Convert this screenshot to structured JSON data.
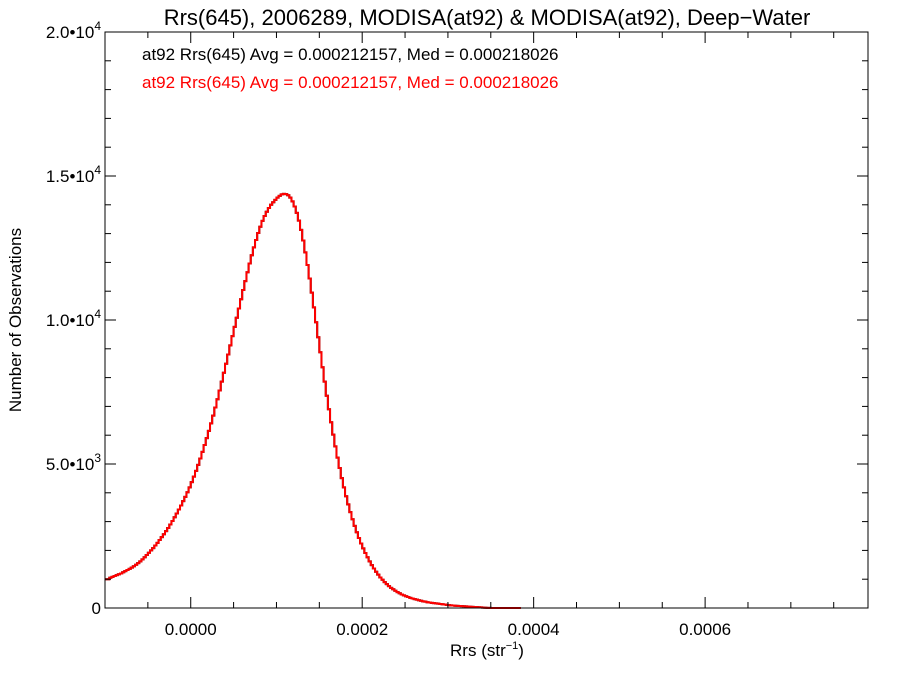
{
  "chart_data": {
    "type": "histogram",
    "title": "Rrs(645), 2006289, MODISA(at92) & MODISA(at92), Deep−Water",
    "xlabel": "Rrs (str",
    "xlabel_sup": "−1",
    "xlabel_end": ")",
    "ylabel": "Number of Observations",
    "xlim": [
      -0.0001,
      0.00079
    ],
    "ylim": [
      0,
      20000
    ],
    "x_ticks": [
      {
        "value": 0.0,
        "label": "0.0000"
      },
      {
        "value": 0.0002,
        "label": "0.0002"
      },
      {
        "value": 0.0004,
        "label": "0.0004"
      },
      {
        "value": 0.0006,
        "label": "0.0006"
      }
    ],
    "y_ticks": [
      {
        "value": 0,
        "base": "0",
        "exp": ""
      },
      {
        "value": 5000,
        "base": "5.0•10",
        "exp": "3"
      },
      {
        "value": 10000,
        "base": "1.0•10",
        "exp": "4"
      },
      {
        "value": 15000,
        "base": "1.5•10",
        "exp": "4"
      },
      {
        "value": 20000,
        "base": "2.0•10",
        "exp": "4"
      }
    ],
    "grid": false,
    "annotations": [
      {
        "text": "at92 Rrs(645) Avg = 0.000212157, Med = 0.000218026",
        "color": "#000000"
      },
      {
        "text": "at92 Rrs(645) Avg = 0.000212157, Med = 0.000218026",
        "color": "#ff0000"
      }
    ],
    "series": [
      {
        "color": "#000000",
        "x": [],
        "y": []
      },
      {
        "color": "#ff0000",
        "x": [],
        "y": []
      }
    ],
    "x_start": -0.0001,
    "bin_width": 2.5e-06,
    "counts": [
      1000,
      1000,
      1050,
      1080,
      1110,
      1140,
      1170,
      1200,
      1240,
      1280,
      1320,
      1360,
      1400,
      1450,
      1500,
      1560,
      1620,
      1690,
      1760,
      1840,
      1920,
      2000,
      2080,
      2170,
      2260,
      2360,
      2460,
      2560,
      2670,
      2780,
      2900,
      3020,
      3150,
      3280,
      3420,
      3560,
      3710,
      3860,
      4020,
      4190,
      4370,
      4560,
      4760,
      4970,
      5190,
      5420,
      5660,
      5900,
      6150,
      6410,
      6680,
      6960,
      7250,
      7550,
      7860,
      8170,
      8480,
      8800,
      9120,
      9440,
      9760,
      10080,
      10400,
      10720,
      11040,
      11350,
      11660,
      11960,
      12250,
      12520,
      12780,
      13020,
      13240,
      13440,
      13610,
      13760,
      13890,
      14000,
      14090,
      14170,
      14250,
      14310,
      14360,
      14380,
      14370,
      14330,
      14250,
      14120,
      13940,
      13720,
      13450,
      13130,
      12760,
      12350,
      11910,
      11440,
      10950,
      10440,
      9920,
      9400,
      8880,
      8360,
      7860,
      7370,
      6900,
      6450,
      6020,
      5610,
      5220,
      4860,
      4510,
      4190,
      3880,
      3600,
      3330,
      3080,
      2850,
      2630,
      2430,
      2240,
      2070,
      1910,
      1760,
      1620,
      1490,
      1370,
      1260,
      1160,
      1060,
      980,
      900,
      830,
      760,
      700,
      650,
      600,
      550,
      510,
      470,
      440,
      410,
      380,
      350,
      330,
      310,
      290,
      270,
      250,
      230,
      220,
      200,
      190,
      180,
      170,
      160,
      150,
      140,
      130,
      120,
      110,
      100,
      90,
      85,
      80,
      75,
      70,
      65,
      60,
      55,
      50,
      45,
      40,
      35,
      30,
      25,
      20,
      15,
      10,
      6,
      4,
      2,
      1,
      0,
      0,
      0,
      0,
      0,
      0,
      0,
      0,
      0,
      0,
      0,
      0
    ]
  }
}
